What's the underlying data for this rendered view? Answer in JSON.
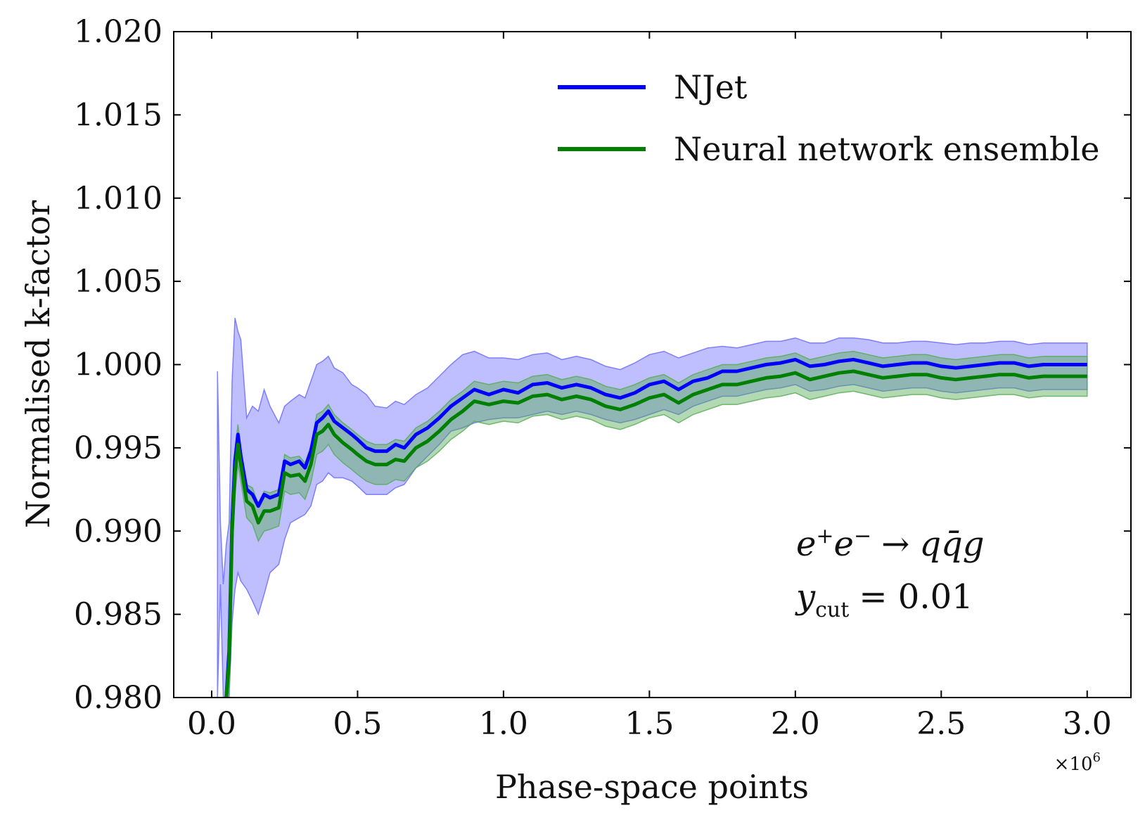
{
  "chart_data": {
    "type": "line",
    "title": "",
    "xlabel": "Phase-space points",
    "ylabel": "Normalised k-factor",
    "x_multiplier_label": "×10",
    "x_multiplier_exponent": "6",
    "xlim": [
      -0.13,
      3.15
    ],
    "ylim": [
      0.98,
      1.02
    ],
    "x_ticks": [
      0.0,
      0.5,
      1.0,
      1.5,
      2.0,
      2.5,
      3.0
    ],
    "x_tick_labels": [
      "0.0",
      "0.5",
      "1.0",
      "1.5",
      "2.0",
      "2.5",
      "3.0"
    ],
    "y_ticks": [
      0.98,
      0.985,
      0.99,
      0.995,
      1.0,
      1.005,
      1.01,
      1.015,
      1.02
    ],
    "y_tick_labels": [
      "0.980",
      "0.985",
      "0.990",
      "0.995",
      "1.000",
      "1.005",
      "1.010",
      "1.015",
      "1.020"
    ],
    "grid": false,
    "legend_position": "top-right",
    "annotation": {
      "process_lhs": "e",
      "process_sup1": "+",
      "process_e2": "e",
      "process_sup2": "−",
      "process_arrow": "→",
      "process_rhs": "qq̄g",
      "cut_symbol": "y",
      "cut_sub": "cut",
      "cut_eq": "= 0.01"
    },
    "series": [
      {
        "name": "NJet",
        "color": "#0000ff",
        "band_color": "#6666ff",
        "x": [
          0.05,
          0.06,
          0.07,
          0.08,
          0.09,
          0.1,
          0.12,
          0.14,
          0.16,
          0.18,
          0.2,
          0.23,
          0.25,
          0.27,
          0.3,
          0.32,
          0.34,
          0.36,
          0.38,
          0.4,
          0.42,
          0.45,
          0.48,
          0.5,
          0.53,
          0.56,
          0.6,
          0.63,
          0.66,
          0.7,
          0.74,
          0.78,
          0.82,
          0.86,
          0.9,
          0.95,
          1.0,
          1.05,
          1.1,
          1.15,
          1.2,
          1.25,
          1.3,
          1.35,
          1.4,
          1.45,
          1.5,
          1.55,
          1.6,
          1.65,
          1.7,
          1.75,
          1.8,
          1.85,
          1.9,
          1.95,
          2.0,
          2.05,
          2.1,
          2.15,
          2.2,
          2.25,
          2.3,
          2.35,
          2.4,
          2.45,
          2.5,
          2.55,
          2.6,
          2.65,
          2.7,
          2.75,
          2.8,
          2.85,
          2.9,
          2.95,
          3.0
        ],
        "y": [
          0.98,
          0.9828,
          0.9905,
          0.9942,
          0.9958,
          0.9945,
          0.9925,
          0.9922,
          0.9915,
          0.9922,
          0.992,
          0.9922,
          0.9942,
          0.994,
          0.9942,
          0.9938,
          0.9948,
          0.9965,
          0.9968,
          0.9972,
          0.9966,
          0.9962,
          0.9958,
          0.9955,
          0.995,
          0.9948,
          0.9948,
          0.9952,
          0.995,
          0.9958,
          0.9962,
          0.9968,
          0.9975,
          0.998,
          0.9985,
          0.9982,
          0.9985,
          0.9983,
          0.9988,
          0.9989,
          0.9986,
          0.9988,
          0.9986,
          0.9982,
          0.998,
          0.9983,
          0.9988,
          0.999,
          0.9985,
          0.999,
          0.9992,
          0.9996,
          0.9996,
          0.9998,
          1.0,
          1.0001,
          1.0003,
          0.9999,
          1.0,
          1.0002,
          1.0003,
          1.0001,
          0.9999,
          1.0,
          1.0001,
          1.0001,
          0.9999,
          0.9998,
          0.9999,
          1.0,
          1.0001,
          1.0001,
          0.9999,
          1.0,
          1.0,
          1.0,
          1.0
        ]
      },
      {
        "name": "Neural network ensemble",
        "color": "#008000",
        "band_color": "#55aa55",
        "x": [
          0.05,
          0.06,
          0.07,
          0.08,
          0.09,
          0.1,
          0.12,
          0.14,
          0.16,
          0.18,
          0.2,
          0.23,
          0.25,
          0.27,
          0.3,
          0.32,
          0.34,
          0.36,
          0.38,
          0.4,
          0.42,
          0.45,
          0.48,
          0.5,
          0.53,
          0.56,
          0.6,
          0.63,
          0.66,
          0.7,
          0.74,
          0.78,
          0.82,
          0.86,
          0.9,
          0.95,
          1.0,
          1.05,
          1.1,
          1.15,
          1.2,
          1.25,
          1.3,
          1.35,
          1.4,
          1.45,
          1.5,
          1.55,
          1.6,
          1.65,
          1.7,
          1.75,
          1.8,
          1.85,
          1.9,
          1.95,
          2.0,
          2.05,
          2.1,
          2.15,
          2.2,
          2.25,
          2.3,
          2.35,
          2.4,
          2.45,
          2.5,
          2.55,
          2.6,
          2.65,
          2.7,
          2.75,
          2.8,
          2.85,
          2.9,
          2.95,
          3.0
        ],
        "y": [
          0.98,
          0.9822,
          0.99,
          0.9935,
          0.9952,
          0.994,
          0.9918,
          0.9915,
          0.9905,
          0.9912,
          0.9912,
          0.9914,
          0.9935,
          0.9933,
          0.9934,
          0.993,
          0.994,
          0.9958,
          0.996,
          0.9964,
          0.9958,
          0.9953,
          0.9949,
          0.9946,
          0.9942,
          0.994,
          0.994,
          0.9943,
          0.9942,
          0.995,
          0.9954,
          0.996,
          0.9967,
          0.9972,
          0.9978,
          0.9976,
          0.9978,
          0.9977,
          0.9981,
          0.9982,
          0.9979,
          0.9981,
          0.9979,
          0.9975,
          0.9973,
          0.9976,
          0.998,
          0.9982,
          0.9977,
          0.9982,
          0.9985,
          0.9988,
          0.9988,
          0.999,
          0.9992,
          0.9993,
          0.9995,
          0.9991,
          0.9993,
          0.9995,
          0.9996,
          0.9994,
          0.9992,
          0.9993,
          0.9994,
          0.9994,
          0.9992,
          0.9991,
          0.9992,
          0.9993,
          0.9994,
          0.9994,
          0.9992,
          0.9993,
          0.9993,
          0.9993,
          0.9993
        ]
      }
    ],
    "bands": [
      {
        "name": "NJet uncertainty",
        "x": [
          0.02,
          0.03,
          0.04,
          0.05,
          0.06,
          0.07,
          0.08,
          0.09,
          0.1,
          0.12,
          0.14,
          0.16,
          0.18,
          0.2,
          0.23,
          0.25,
          0.27,
          0.3,
          0.32,
          0.34,
          0.36,
          0.38,
          0.4,
          0.42,
          0.45,
          0.48,
          0.5,
          0.53,
          0.56,
          0.6,
          0.63,
          0.66,
          0.7,
          0.74,
          0.78,
          0.82,
          0.86,
          0.9,
          0.95,
          1.0,
          1.05,
          1.1,
          1.15,
          1.2,
          1.25,
          1.3,
          1.35,
          1.4,
          1.45,
          1.5,
          1.55,
          1.6,
          1.65,
          1.7,
          1.75,
          1.8,
          1.85,
          1.9,
          1.95,
          2.0,
          2.05,
          2.1,
          2.15,
          2.2,
          2.25,
          2.3,
          2.35,
          2.4,
          2.45,
          2.5,
          2.55,
          2.6,
          2.65,
          2.7,
          2.75,
          2.8,
          2.85,
          2.9,
          2.95,
          3.0
        ],
        "lower": [
          0.98,
          0.9868,
          0.98,
          0.98,
          0.98,
          0.9845,
          0.9865,
          0.9875,
          0.987,
          0.9865,
          0.9858,
          0.985,
          0.9862,
          0.9875,
          0.988,
          0.9895,
          0.9905,
          0.9908,
          0.991,
          0.9915,
          0.9928,
          0.993,
          0.9935,
          0.9932,
          0.9932,
          0.993,
          0.9927,
          0.9922,
          0.9922,
          0.9922,
          0.9926,
          0.9928,
          0.9938,
          0.9945,
          0.9952,
          0.996,
          0.9962,
          0.9965,
          0.9967,
          0.9968,
          0.9968,
          0.997,
          0.9972,
          0.997,
          0.9972,
          0.997,
          0.9967,
          0.9965,
          0.9967,
          0.997,
          0.9973,
          0.997,
          0.9975,
          0.9978,
          0.9981,
          0.9981,
          0.9983,
          0.9985,
          0.9986,
          0.9988,
          0.9984,
          0.9985,
          0.9987,
          0.9988,
          0.9986,
          0.9984,
          0.9985,
          0.9986,
          0.9986,
          0.9984,
          0.9983,
          0.9984,
          0.9985,
          0.9986,
          0.9986,
          0.9984,
          0.9985,
          0.9985,
          0.9985,
          0.9985
        ],
        "upper": [
          0.9996,
          0.9905,
          0.9868,
          0.9892,
          0.9905,
          0.999,
          1.0028,
          1.002,
          1.0015,
          0.9968,
          0.9975,
          0.9972,
          0.9985,
          0.9975,
          0.9965,
          0.9975,
          0.9978,
          0.9982,
          0.998,
          0.999,
          1.0,
          1.0002,
          1.0005,
          0.9998,
          0.9995,
          0.9988,
          0.9986,
          0.9982,
          0.9975,
          0.9974,
          0.9978,
          0.9976,
          0.9982,
          0.9986,
          0.9993,
          1.0,
          1.0006,
          1.0008,
          1.0004,
          1.0004,
          1.0003,
          1.0006,
          1.0007,
          1.0003,
          1.0005,
          1.0003,
          0.9999,
          0.9997,
          1.0001,
          1.0006,
          1.0008,
          1.0004,
          1.0007,
          1.001,
          1.0011,
          1.001,
          1.0012,
          1.0014,
          1.0014,
          1.0016,
          1.0013,
          1.0013,
          1.0016,
          1.0016,
          1.0015,
          1.0013,
          1.0013,
          1.0014,
          1.0014,
          1.0013,
          1.0012,
          1.0013,
          1.0013,
          1.0014,
          1.0014,
          1.0012,
          1.0013,
          1.0013,
          1.0013,
          1.0013
        ]
      },
      {
        "name": "Neural network ensemble uncertainty",
        "x": [
          0.05,
          0.06,
          0.07,
          0.08,
          0.09,
          0.1,
          0.12,
          0.14,
          0.16,
          0.18,
          0.2,
          0.23,
          0.25,
          0.27,
          0.3,
          0.32,
          0.34,
          0.36,
          0.38,
          0.4,
          0.42,
          0.45,
          0.48,
          0.5,
          0.53,
          0.56,
          0.6,
          0.63,
          0.66,
          0.7,
          0.74,
          0.78,
          0.82,
          0.86,
          0.9,
          0.95,
          1.0,
          1.05,
          1.1,
          1.15,
          1.2,
          1.25,
          1.3,
          1.35,
          1.4,
          1.45,
          1.5,
          1.55,
          1.6,
          1.65,
          1.7,
          1.75,
          1.8,
          1.85,
          1.9,
          1.95,
          2.0,
          2.05,
          2.1,
          2.15,
          2.2,
          2.25,
          2.3,
          2.35,
          2.4,
          2.45,
          2.5,
          2.55,
          2.6,
          2.65,
          2.7,
          2.75,
          2.8,
          2.85,
          2.9,
          2.95,
          3.0
        ],
        "lower": [
          0.98,
          0.98,
          0.9885,
          0.9922,
          0.994,
          0.993,
          0.9908,
          0.9904,
          0.9894,
          0.99,
          0.9901,
          0.9903,
          0.9924,
          0.9922,
          0.9923,
          0.9919,
          0.9929,
          0.9946,
          0.9948,
          0.9952,
          0.9946,
          0.9941,
          0.9937,
          0.9934,
          0.993,
          0.9928,
          0.9928,
          0.9931,
          0.993,
          0.9938,
          0.9942,
          0.9948,
          0.9955,
          0.996,
          0.9966,
          0.9964,
          0.9966,
          0.9965,
          0.9969,
          0.997,
          0.9967,
          0.9969,
          0.9967,
          0.9963,
          0.9961,
          0.9964,
          0.9968,
          0.997,
          0.9965,
          0.997,
          0.9973,
          0.9976,
          0.9976,
          0.9978,
          0.998,
          0.9981,
          0.9983,
          0.9979,
          0.9981,
          0.9983,
          0.9984,
          0.9982,
          0.998,
          0.9981,
          0.9982,
          0.9982,
          0.998,
          0.9979,
          0.998,
          0.9981,
          0.9982,
          0.9982,
          0.998,
          0.9981,
          0.9981,
          0.9981,
          0.9981
        ],
        "upper": [
          0.98,
          0.9836,
          0.9915,
          0.9948,
          0.9964,
          0.995,
          0.9928,
          0.9926,
          0.9916,
          0.9924,
          0.9923,
          0.9925,
          0.9946,
          0.9944,
          0.9945,
          0.9941,
          0.9951,
          0.997,
          0.9972,
          0.9976,
          0.997,
          0.9965,
          0.9961,
          0.9958,
          0.9954,
          0.9952,
          0.9952,
          0.9955,
          0.9954,
          0.9962,
          0.9966,
          0.9972,
          0.9979,
          0.9984,
          0.999,
          0.9988,
          0.999,
          0.9989,
          0.9993,
          0.9994,
          0.9991,
          0.9993,
          0.9991,
          0.9987,
          0.9985,
          0.9988,
          0.9992,
          0.9994,
          0.9989,
          0.9994,
          0.9997,
          1.0,
          1.0,
          1.0002,
          1.0004,
          1.0005,
          1.0007,
          1.0003,
          1.0005,
          1.0007,
          1.0008,
          1.0006,
          1.0004,
          1.0005,
          1.0006,
          1.0006,
          1.0004,
          1.0003,
          1.0004,
          1.0005,
          1.0006,
          1.0006,
          1.0004,
          1.0005,
          1.0005,
          1.0005,
          1.0005
        ]
      }
    ]
  }
}
